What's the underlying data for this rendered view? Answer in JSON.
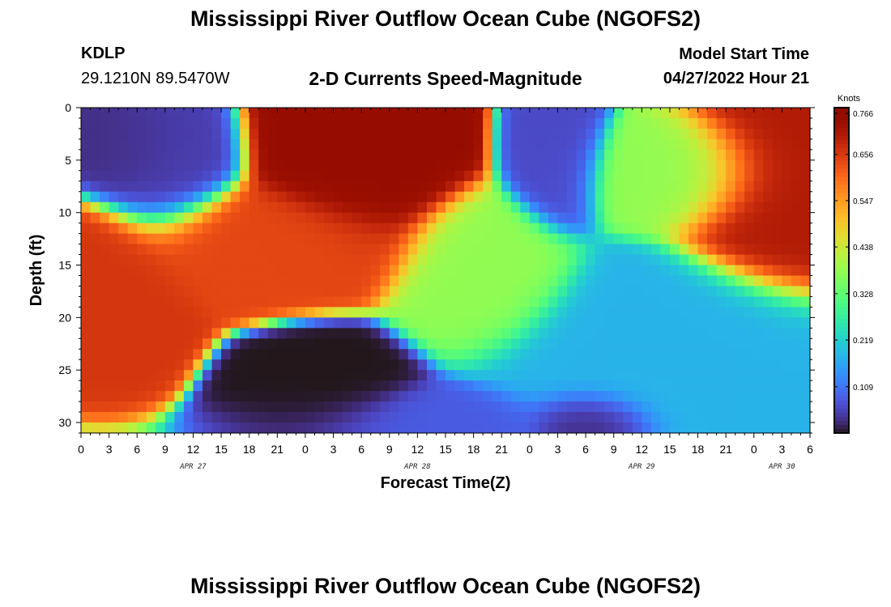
{
  "page": {
    "title_top": "Mississippi River Outflow Ocean Cube (NGOFS2)",
    "title_bottom": "Mississippi River Outflow Ocean Cube (NGOFS2)",
    "station_id": "KDLP",
    "station_coords": "29.1210N  89.5470W",
    "subtitle": "2-D Currents Speed-Magnitude",
    "model_start_label": "Model Start Time",
    "model_start_value": "04/27/2022 Hour 21"
  },
  "chart_data": {
    "type": "heatmap",
    "title": "2-D Currents Speed-Magnitude",
    "xlabel": "Forecast Time(Z)",
    "ylabel": "Depth (ft)",
    "x_ticks": [
      "0",
      "3",
      "6",
      "9",
      "12",
      "15",
      "18",
      "21",
      "0",
      "3",
      "6",
      "9",
      "12",
      "15",
      "18",
      "21",
      "0",
      "3",
      "6",
      "9",
      "12",
      "15",
      "18",
      "21",
      "0",
      "3",
      "6"
    ],
    "x_hours": [
      0,
      3,
      6,
      9,
      12,
      15,
      18,
      21,
      24,
      27,
      30,
      33,
      36,
      39,
      42,
      45,
      48,
      51,
      54,
      57,
      60,
      63,
      66,
      69,
      72,
      75,
      78
    ],
    "x_range_hours": [
      0,
      78
    ],
    "date_labels": [
      {
        "label": "APR 27",
        "hour": 12
      },
      {
        "label": "APR 28",
        "hour": 36
      },
      {
        "label": "APR 29",
        "hour": 60
      },
      {
        "label": "APR 30",
        "hour": 75
      }
    ],
    "y_ticks": [
      0,
      5,
      10,
      15,
      20,
      25,
      30
    ],
    "y_range_ft": [
      0,
      31
    ],
    "colorbar": {
      "unit": "Knots",
      "ticks": [
        0.766,
        0.656,
        0.547,
        0.438,
        0.328,
        0.219,
        0.109
      ],
      "min": 0.0,
      "max": 0.766
    },
    "speed_field_knots": [
      {
        "hour": 6,
        "depth": 4,
        "speed": 0.03,
        "spread_h": 4,
        "spread_d": 3
      },
      {
        "hour": 9,
        "depth": 5,
        "speed": 0.05,
        "spread_h": 4,
        "spread_d": 4
      },
      {
        "hour": 27,
        "depth": 27,
        "speed": 0.0,
        "spread_h": 5,
        "spread_d": 3
      },
      {
        "hour": 51,
        "depth": 4,
        "speed": 0.06,
        "spread_h": 3,
        "spread_d": 4
      },
      {
        "hour": 55,
        "depth": 30,
        "speed": 0.02,
        "spread_h": 4,
        "spread_d": 2
      },
      {
        "hour": 36,
        "depth": 30,
        "speed": 0.08,
        "spread_h": 8,
        "spread_d": 2
      },
      {
        "hour": 2,
        "depth": 17,
        "speed": 0.66,
        "spread_h": 5,
        "spread_d": 4
      },
      {
        "hour": 30,
        "depth": 4,
        "speed": 0.74,
        "spread_h": 6,
        "spread_d": 5
      },
      {
        "hour": 20,
        "depth": 13,
        "speed": 0.64,
        "spread_h": 9,
        "spread_d": 3
      },
      {
        "hour": 43,
        "depth": 16,
        "speed": 0.38,
        "spread_h": 5,
        "spread_d": 4
      },
      {
        "hour": 75,
        "depth": 6,
        "speed": 0.7,
        "spread_h": 6,
        "spread_d": 6
      },
      {
        "hour": 64,
        "depth": 6,
        "speed": 0.38,
        "spread_h": 6,
        "spread_d": 3
      },
      {
        "hour": 62,
        "depth": 24,
        "speed": 0.18,
        "spread_h": 10,
        "spread_d": 5
      }
    ]
  },
  "colors": {
    "min": "#30123b",
    "blue": "#4686fb",
    "cyan": "#1ae4b6",
    "green": "#a2fc3c",
    "yellow": "#fabc3a",
    "orange": "#e4460a",
    "max": "#7a0403"
  }
}
